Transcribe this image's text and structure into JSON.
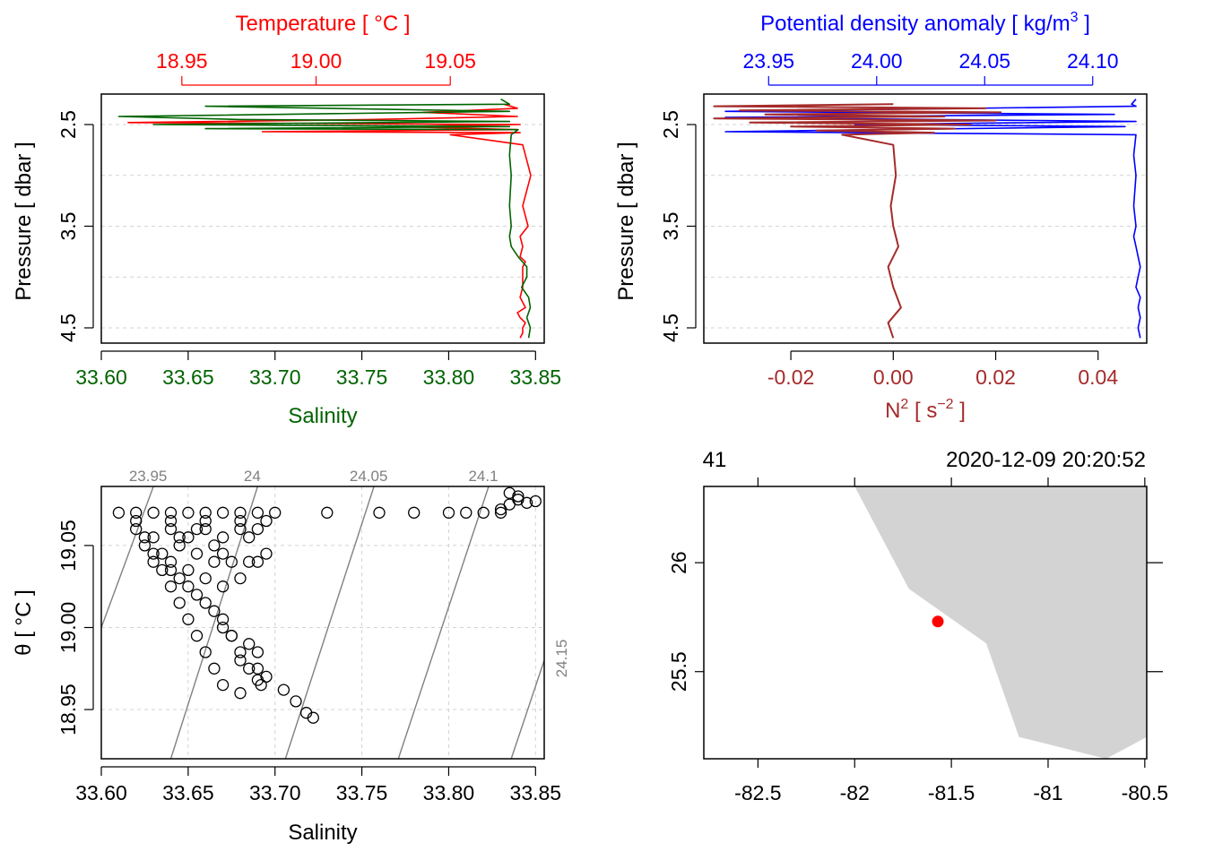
{
  "colors": {
    "temperature": "#FF0000",
    "salinity": "#006400",
    "density": "#0000FF",
    "n2": "#A52A2A",
    "isopycnal": "#808080",
    "grid": "#D3D3D3",
    "land": "#D3D3D3",
    "station": "#FF0000",
    "axis": "#000000"
  },
  "chart_data": [
    {
      "id": "ts-profile",
      "type": "line",
      "top_axis": {
        "label": "Temperature [ °C ]",
        "range": [
          18.92,
          19.085
        ],
        "ticks": [
          "18.95",
          "19.00",
          "19.05"
        ]
      },
      "bottom_axis": {
        "label": "Salinity",
        "range": [
          33.6,
          33.855
        ],
        "ticks": [
          "33.60",
          "33.65",
          "33.70",
          "33.75",
          "33.80",
          "33.85"
        ]
      },
      "y_axis": {
        "label": "Pressure [ dbar ]",
        "range": [
          4.65,
          2.2
        ],
        "ticks": [
          "2.5",
          "3.5",
          "4.5"
        ],
        "gridlines": [
          2.5,
          3.0,
          3.5,
          4.0,
          4.5
        ],
        "reversed": true
      },
      "series": [
        {
          "name": "Temperature",
          "color_key": "temperature",
          "x": [
            19.07,
            19.075,
            19.04,
            19.075,
            19.02,
            18.93,
            19.076,
            19.03,
            19.075,
            18.98,
            19.076,
            19.05,
            19.077,
            19.08,
            19.077,
            19.079,
            19.076,
            19.077,
            19.076,
            19.078,
            19.077,
            19.077,
            19.077,
            19.076,
            19.078,
            19.075,
            19.076,
            19.078,
            19.077,
            19.077,
            19.076
          ],
          "y": [
            2.3,
            2.34,
            2.38,
            2.42,
            2.45,
            2.48,
            2.5,
            2.52,
            2.55,
            2.57,
            2.58,
            2.6,
            2.7,
            3.0,
            3.3,
            3.5,
            3.6,
            3.7,
            3.8,
            3.85,
            3.9,
            4.0,
            4.1,
            4.2,
            4.3,
            4.35,
            4.4,
            4.45,
            4.5,
            4.55,
            4.6
          ]
        },
        {
          "name": "Salinity",
          "color_key": "salinity",
          "x": [
            33.83,
            33.835,
            33.66,
            33.835,
            33.61,
            33.68,
            33.835,
            33.63,
            33.835,
            33.66,
            33.84,
            33.836,
            33.835,
            33.836,
            33.835,
            33.836,
            33.835,
            33.836,
            33.84,
            33.845,
            33.845,
            33.842,
            33.846,
            33.847,
            33.845,
            33.846,
            33.847,
            33.846
          ],
          "y": [
            2.25,
            2.3,
            2.32,
            2.37,
            2.42,
            2.45,
            2.47,
            2.5,
            2.52,
            2.54,
            2.55,
            2.6,
            2.8,
            3.0,
            3.3,
            3.5,
            3.6,
            3.7,
            3.8,
            3.9,
            4.0,
            4.1,
            4.2,
            4.3,
            4.4,
            4.45,
            4.5,
            4.6
          ]
        }
      ]
    },
    {
      "id": "density-n2-profile",
      "type": "line",
      "top_axis": {
        "label": "Potential density anomaly [ kg/m³ ]",
        "label_main": "Potential density anomaly [ kg/m",
        "label_sup": "3",
        "label_end": " ]",
        "range": [
          23.92,
          24.125
        ],
        "ticks": [
          "23.95",
          "24.00",
          "24.05",
          "24.10"
        ]
      },
      "bottom_axis": {
        "label": "N² [ s⁻² ]",
        "label_main": "N",
        "label_sup": "2",
        "label_mid": " [ s",
        "label_sup2": "−2",
        "label_end": " ]",
        "range": [
          -0.037,
          0.0495
        ],
        "ticks": [
          "-0.02",
          "0.00",
          "0.02",
          "0.04"
        ]
      },
      "y_axis": {
        "label": "Pressure [ dbar ]",
        "range": [
          4.65,
          2.2
        ],
        "ticks": [
          "2.5",
          "3.5",
          "4.5"
        ],
        "gridlines": [
          2.5,
          3.0,
          3.5,
          4.0,
          4.5
        ],
        "reversed": true
      },
      "series": [
        {
          "name": "Potential density anomaly",
          "color_key": "density",
          "x": [
            24.12,
            24.118,
            24.12,
            23.93,
            24.11,
            23.93,
            24.12,
            23.99,
            24.115,
            23.93,
            24.12,
            24.119,
            24.12,
            24.119,
            24.12,
            24.119,
            24.12,
            24.121,
            24.122,
            24.121,
            24.12,
            24.122,
            24.121,
            24.122,
            24.121,
            24.122
          ],
          "y": [
            2.25,
            2.3,
            2.32,
            2.37,
            2.4,
            2.43,
            2.47,
            2.5,
            2.52,
            2.57,
            2.6,
            2.8,
            3.0,
            3.3,
            3.5,
            3.6,
            3.7,
            3.8,
            3.9,
            4.0,
            4.1,
            4.2,
            4.3,
            4.4,
            4.5,
            4.6
          ]
        },
        {
          "name": "N²",
          "color_key": "n2",
          "x": [
            0.0,
            -0.035,
            0.018,
            -0.03,
            0.021,
            -0.025,
            0.01,
            -0.035,
            0.02,
            -0.028,
            0.015,
            -0.02,
            0.012,
            -0.015,
            0.008,
            -0.01,
            0.0,
            0.0005,
            -0.0005,
            0.0,
            0.001,
            -0.001,
            0.0,
            0.0015,
            -0.001,
            0.0
          ],
          "y": [
            2.3,
            2.32,
            2.34,
            2.36,
            2.38,
            2.4,
            2.42,
            2.44,
            2.46,
            2.48,
            2.5,
            2.52,
            2.54,
            2.56,
            2.58,
            2.6,
            2.7,
            3.0,
            3.3,
            3.5,
            3.7,
            3.9,
            4.1,
            4.3,
            4.45,
            4.6
          ]
        }
      ]
    },
    {
      "id": "ts-diagram",
      "type": "scatter",
      "x_axis": {
        "label": "Salinity",
        "range": [
          33.6,
          33.855
        ],
        "ticks": [
          "33.60",
          "33.65",
          "33.70",
          "33.75",
          "33.80",
          "33.85"
        ]
      },
      "y_axis": {
        "label": "θ [ °C ]",
        "range": [
          18.92,
          19.086
        ],
        "ticks": [
          "18.95",
          "19.00",
          "19.05"
        ]
      },
      "isopycnals": [
        {
          "label": "23.95",
          "x": [
            33.6,
            33.63
          ],
          "y": [
            19.0,
            19.086
          ]
        },
        {
          "label": "24",
          "x": [
            33.64,
            33.69
          ],
          "y": [
            18.92,
            19.086
          ]
        },
        {
          "label": "24.05",
          "x": [
            33.706,
            33.757
          ],
          "y": [
            18.92,
            19.086
          ]
        },
        {
          "label": "24.1",
          "x": [
            33.771,
            33.823
          ],
          "y": [
            18.92,
            19.086
          ]
        },
        {
          "label": "24.15",
          "x": [
            33.836,
            33.855
          ],
          "y": [
            18.92,
            18.98
          ]
        }
      ],
      "points": {
        "x": [
          33.61,
          33.62,
          33.63,
          33.64,
          33.65,
          33.66,
          33.67,
          33.68,
          33.69,
          33.7,
          33.73,
          33.76,
          33.78,
          33.8,
          33.81,
          33.82,
          33.83,
          33.835,
          33.84,
          33.845,
          33.85,
          33.835,
          33.84,
          33.83,
          33.62,
          33.63,
          33.64,
          33.65,
          33.66,
          33.62,
          33.64,
          33.66,
          33.68,
          33.695,
          33.625,
          33.635,
          33.645,
          33.655,
          33.665,
          33.67,
          33.675,
          33.685,
          33.63,
          33.64,
          33.645,
          33.65,
          33.655,
          33.66,
          33.665,
          33.67,
          33.675,
          33.68,
          33.69,
          33.695,
          33.705,
          33.712,
          33.718,
          33.722,
          33.67,
          33.675,
          33.68,
          33.685,
          33.69,
          33.692,
          33.69,
          33.685,
          33.68,
          33.67,
          33.665,
          33.66,
          33.655,
          33.65,
          33.645,
          33.64,
          33.635,
          33.63,
          33.625,
          33.64,
          33.65,
          33.66,
          33.67,
          33.68,
          33.69,
          33.695,
          33.645,
          33.655,
          33.665,
          33.67,
          33.68,
          33.685,
          33.69
        ],
        "y": [
          19.07,
          19.07,
          19.07,
          19.07,
          19.07,
          19.07,
          19.07,
          19.07,
          19.07,
          19.07,
          19.07,
          19.07,
          19.07,
          19.07,
          19.07,
          19.07,
          19.07,
          19.075,
          19.078,
          19.076,
          19.077,
          19.082,
          19.08,
          19.072,
          19.06,
          19.055,
          19.06,
          19.055,
          19.06,
          19.065,
          19.065,
          19.065,
          19.065,
          19.065,
          19.05,
          19.045,
          19.05,
          19.045,
          19.04,
          19.045,
          19.04,
          19.04,
          19.04,
          19.035,
          19.03,
          19.025,
          19.02,
          19.015,
          19.01,
          19.0,
          18.995,
          18.985,
          18.975,
          18.97,
          18.962,
          18.955,
          18.948,
          18.945,
          19.005,
          18.995,
          18.98,
          18.975,
          18.968,
          18.965,
          18.985,
          18.99,
          18.96,
          18.965,
          18.975,
          18.985,
          18.995,
          19.005,
          19.015,
          19.025,
          19.035,
          19.045,
          19.055,
          19.04,
          19.035,
          19.03,
          19.025,
          19.03,
          19.04,
          19.045,
          19.055,
          19.06,
          19.05,
          19.055,
          19.06,
          19.055,
          19.06
        ]
      }
    },
    {
      "id": "station-map",
      "type": "map",
      "x_axis": {
        "range": [
          -82.78,
          -80.49
        ],
        "ticks": [
          "-82.5",
          "-82",
          "-81.5",
          "-81",
          "-80.5"
        ]
      },
      "y_axis": {
        "range": [
          25.1,
          26.35
        ],
        "ticks": [
          "25.5",
          "26"
        ]
      },
      "top_label_left": "41",
      "top_label_right": "2020-12-09 20:20:52",
      "land_polygon": {
        "lon": [
          -82.0,
          -81.72,
          -81.32,
          -81.15,
          -80.7,
          -80.49,
          -80.49
        ],
        "lat": [
          26.35,
          25.88,
          25.63,
          25.2,
          25.1,
          25.2,
          26.35
        ]
      },
      "station": {
        "lon": -81.57,
        "lat": 25.73
      }
    }
  ]
}
